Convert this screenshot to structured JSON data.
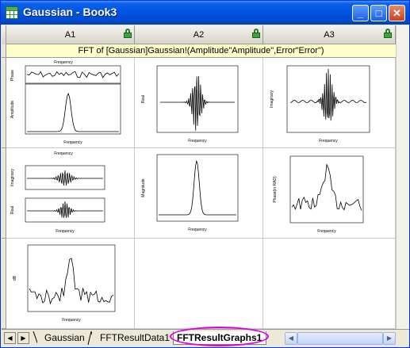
{
  "window": {
    "title": "Gaussian - Book3",
    "minimize_symbol": "_",
    "maximize_symbol": "□",
    "close_symbol": "✕"
  },
  "columns": [
    {
      "label": "A1",
      "locked": true
    },
    {
      "label": "A2",
      "locked": true
    },
    {
      "label": "A3",
      "locked": true
    }
  ],
  "comment": "FFT of [Gaussian]Gaussian!(Amplitude\"Amplitude\",Error\"Error\")",
  "thumbnails": {
    "a1_top": {
      "xlabel_top": "Frequency",
      "ylabel_upper": "Phase",
      "ylabel_lower": "Amplitude",
      "xlabel_bottom": "Frequency"
    },
    "a2_top": {
      "ylabel": "Real",
      "xlabel": "Frequency"
    },
    "a3_top": {
      "ylabel": "Imaginary",
      "xlabel": "Frequency"
    },
    "a1_mid": {
      "xlabel_top": "Frequency",
      "ylabel_upper": "Imaginary",
      "ylabel_lower": "Real",
      "xlabel_bottom": "Frequency"
    },
    "a2_mid": {
      "ylabel": "Magnitude",
      "xlabel": "Frequency"
    },
    "a3_mid": {
      "ylabel": "Phase(in RAD)",
      "xlabel": "Frequency"
    },
    "a1_bot": {
      "ylabel": "dB",
      "xlabel": "Frequency"
    }
  },
  "sheet_tabs": [
    {
      "label": "Gaussian",
      "active": false
    },
    {
      "label": "FFTResultData1",
      "active": false
    },
    {
      "label": "FFTResultGraphs1",
      "active": true
    }
  ],
  "colors": {
    "highlight": "#e000e0",
    "titlebar": "#0054e3",
    "comment_bg": "#ffffcc"
  }
}
